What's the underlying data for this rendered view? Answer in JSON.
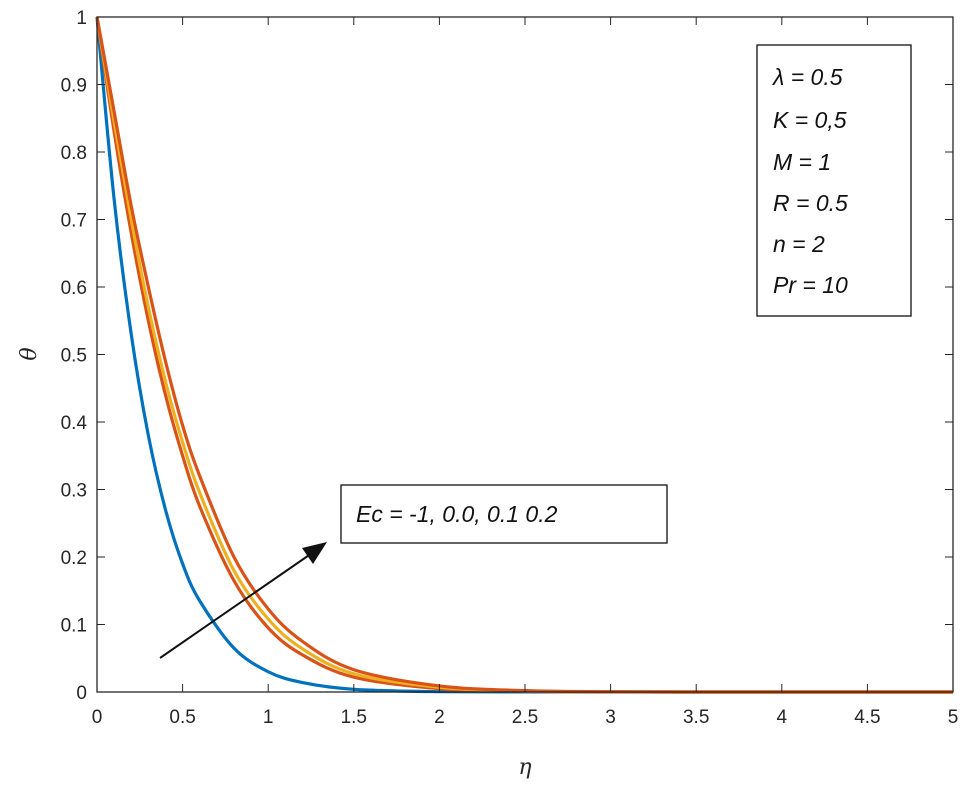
{
  "chart_data": {
    "type": "line",
    "title": "",
    "xlabel": "η",
    "ylabel": "θ",
    "xlim": [
      0,
      5
    ],
    "ylim": [
      0,
      1
    ],
    "xticks": [
      "0",
      "0.5",
      "1",
      "1.5",
      "2",
      "2.5",
      "3",
      "3.5",
      "4",
      "4.5",
      "5"
    ],
    "yticks": [
      "0",
      "0.1",
      "0.2",
      "0.3",
      "0.4",
      "0.5",
      "0.6",
      "0.7",
      "0.8",
      "0.9",
      "1"
    ],
    "grid": false,
    "x": [
      0,
      0.1,
      0.2,
      0.3,
      0.4,
      0.5,
      0.6,
      0.8,
      1.0,
      1.2,
      1.5,
      2.0,
      2.5,
      3.0,
      3.5,
      4.0,
      4.5,
      5.0
    ],
    "series": [
      {
        "color": "#0072BD",
        "values": [
          1.0,
          0.73,
          0.53,
          0.38,
          0.27,
          0.19,
          0.135,
          0.065,
          0.03,
          0.014,
          0.004,
          0.0005,
          0.0001,
          0.0,
          0.0,
          0.0,
          0.0,
          0.0
        ]
      },
      {
        "color": "#D95319",
        "values": [
          1.0,
          0.83,
          0.68,
          0.55,
          0.44,
          0.35,
          0.275,
          0.165,
          0.095,
          0.055,
          0.022,
          0.005,
          0.001,
          0.0002,
          0.0,
          0.0,
          0.0,
          0.0
        ]
      },
      {
        "color": "#EDB120",
        "values": [
          1.0,
          0.845,
          0.7,
          0.57,
          0.46,
          0.37,
          0.295,
          0.18,
          0.108,
          0.064,
          0.027,
          0.007,
          0.0015,
          0.0003,
          0.0,
          0.0,
          0.0,
          0.0
        ]
      },
      {
        "color": "#D95319",
        "values": [
          1.0,
          0.86,
          0.72,
          0.6,
          0.49,
          0.395,
          0.32,
          0.2,
          0.123,
          0.075,
          0.033,
          0.009,
          0.002,
          0.0004,
          0.0,
          0.0,
          0.0,
          0.0
        ]
      }
    ],
    "parameters_box": {
      "lines": [
        "λ = 0.5",
        "K = 0,5",
        "M = 1",
        "R = 0.5",
        "n = 2",
        "Pr = 10"
      ]
    },
    "annotation": {
      "text": "Ec = -1, 0.0, 0.1 0.2",
      "arrow": "pointing up-right across curves"
    }
  }
}
